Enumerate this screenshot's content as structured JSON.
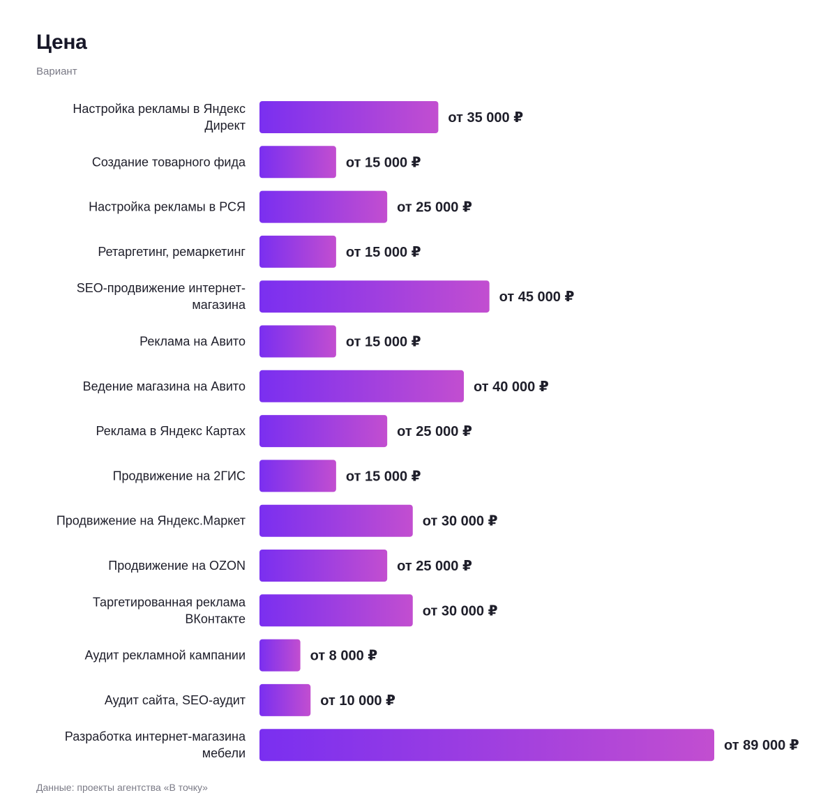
{
  "header": {
    "title": "Цена",
    "subtitle": "Вариант"
  },
  "footer": {
    "source": "Данные: проекты агентства «В точку»"
  },
  "colors": {
    "bar_start": "#7a2ff0",
    "bar_end": "#c24ed0",
    "text": "#1e1e2a",
    "muted": "#7a7a86"
  },
  "chart_data": {
    "type": "bar",
    "orientation": "horizontal",
    "title": "Цена",
    "subtitle": "Вариант",
    "grid": false,
    "legend": "none",
    "value_prefix": "от ",
    "value_suffix": " ₽",
    "xlim": [
      0,
      89000
    ],
    "categories": [
      [
        "Настройка рекламы в Яндекс",
        "Директ"
      ],
      [
        "Создание товарного фида"
      ],
      [
        "Настройка рекламы в РСЯ"
      ],
      [
        "Ретаргетинг, ремаркетинг"
      ],
      [
        "SEO-продвижение интернет-",
        "магазина"
      ],
      [
        "Реклама на Авито"
      ],
      [
        "Ведение магазина на Авито"
      ],
      [
        "Реклама в Яндекс Картах"
      ],
      [
        "Продвижение на 2ГИС"
      ],
      [
        "Продвижение на Яндекс.Маркет"
      ],
      [
        "Продвижение на OZON"
      ],
      [
        "Таргетированная реклама",
        "ВКонтакте"
      ],
      [
        "Аудит рекламной кампании"
      ],
      [
        "Аудит сайта, SEO-аудит"
      ],
      [
        "Разработка интернет-магазина",
        "мебели"
      ]
    ],
    "values": [
      35000,
      15000,
      25000,
      15000,
      45000,
      15000,
      40000,
      25000,
      15000,
      30000,
      25000,
      30000,
      8000,
      10000,
      89000
    ],
    "value_labels": [
      "от 35 000 ₽",
      "от 15 000 ₽",
      "от 25 000 ₽",
      "от 15 000 ₽",
      "от 45 000 ₽",
      "от 15 000 ₽",
      "от 40 000 ₽",
      "от 25 000 ₽",
      "от 15 000 ₽",
      "от 30 000 ₽",
      "от 25 000 ₽",
      "от 30 000 ₽",
      "от 8 000 ₽",
      "от 10 000 ₽",
      "от 89 000 ₽"
    ]
  }
}
